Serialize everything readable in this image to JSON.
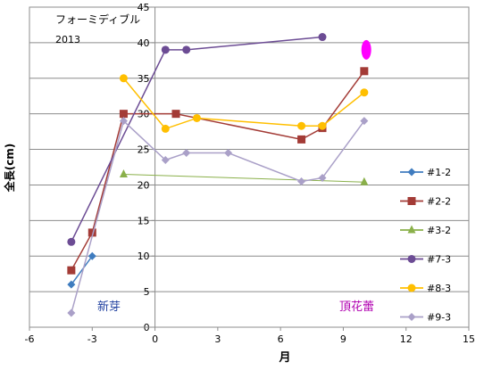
{
  "chart_data": {
    "type": "scatter",
    "title": "フォーミディブル",
    "subtitle": "2013",
    "xlabel": "月",
    "ylabel": "全長(cm)",
    "xlim": [
      -6,
      15
    ],
    "ylim": [
      0,
      45
    ],
    "x_ticks": [
      -6,
      -3,
      0,
      3,
      6,
      9,
      12,
      15
    ],
    "y_ticks": [
      0,
      5,
      10,
      15,
      20,
      25,
      30,
      35,
      40,
      45
    ],
    "x_tick_labels": [
      "-6",
      "-3",
      "0",
      "3",
      "6",
      "9",
      "12",
      "15"
    ],
    "y_tick_labels": [
      "0",
      "5",
      "10",
      "15",
      "20",
      "25",
      "30",
      "35",
      "40",
      "45"
    ],
    "grid": "horizontal",
    "legend_position": "right",
    "series": [
      {
        "name": "#1-2",
        "color": "#3f7cbf",
        "marker": "diamond",
        "points": [
          [
            -4.0,
            6
          ],
          [
            -3.0,
            10
          ]
        ]
      },
      {
        "name": "#2-2",
        "color": "#a33b36",
        "marker": "square",
        "points": [
          [
            -4.0,
            8
          ],
          [
            -3.0,
            13.3
          ],
          [
            -1.5,
            30
          ],
          [
            1.0,
            30
          ],
          [
            7.0,
            26.4
          ],
          [
            8.0,
            28
          ],
          [
            10.0,
            36
          ]
        ]
      },
      {
        "name": "#3-2",
        "color": "#8ab04a",
        "marker": "triangle",
        "points": [
          [
            -1.5,
            21.5
          ],
          [
            10.0,
            20.4
          ]
        ]
      },
      {
        "name": "#7-3",
        "color": "#6c4c94",
        "marker": "circle",
        "points": [
          [
            -4.0,
            12
          ],
          [
            0.5,
            39
          ],
          [
            1.5,
            39
          ],
          [
            8.0,
            40.8
          ]
        ]
      },
      {
        "name": "#8-3",
        "color": "#ffbf00",
        "marker": "circle",
        "points": [
          [
            -1.5,
            35
          ],
          [
            0.5,
            27.9
          ],
          [
            2.0,
            29.4
          ],
          [
            7.0,
            28.3
          ],
          [
            8.0,
            28.3
          ],
          [
            10.0,
            33
          ]
        ]
      },
      {
        "name": "#9-3",
        "color": "#aaa0c8",
        "marker": "diamond",
        "points": [
          [
            -4.0,
            2
          ],
          [
            -1.5,
            29
          ],
          [
            0.5,
            23.5
          ],
          [
            1.5,
            24.5
          ],
          [
            3.5,
            24.5
          ],
          [
            7.0,
            20.5
          ],
          [
            8.0,
            21
          ],
          [
            10.0,
            29
          ]
        ]
      }
    ],
    "annotations": [
      {
        "text": "新芽",
        "color": "#1f3f9f"
      },
      {
        "text": "頂花蕾",
        "color": "#b000b0"
      }
    ],
    "highlight": {
      "x": 10.1,
      "y": 39,
      "color": "#ff00ff"
    }
  }
}
